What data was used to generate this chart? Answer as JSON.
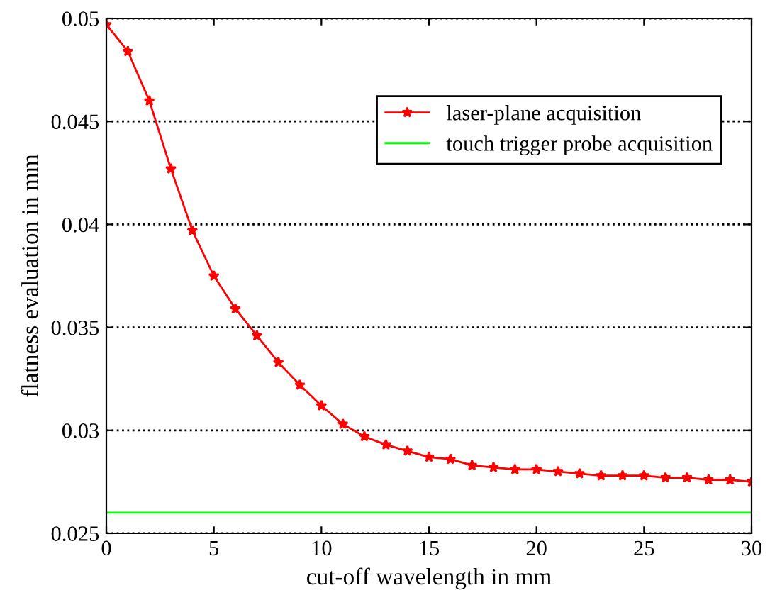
{
  "chart_data": {
    "type": "line",
    "xlabel": "cut-off wavelength in mm",
    "ylabel": "flatness evaluation in mm",
    "xlim": [
      0,
      30
    ],
    "xticks": [
      0,
      5,
      10,
      15,
      20,
      25,
      30
    ],
    "ylim": [
      0.025,
      0.05
    ],
    "yticks": [
      0.025,
      0.03,
      0.035,
      0.04,
      0.045,
      0.05
    ],
    "grid": "y",
    "legend": "top right",
    "series": [
      {
        "name": "laser-plane acquisition",
        "color": "#ff0000",
        "marker": "star",
        "x": [
          0,
          1,
          2,
          3,
          4,
          5,
          6,
          7,
          8,
          9,
          10,
          11,
          12,
          13,
          14,
          15,
          16,
          17,
          18,
          19,
          20,
          21,
          22,
          23,
          24,
          25,
          26,
          27,
          28,
          29,
          30
        ],
        "values": [
          0.0497,
          0.0484,
          0.046,
          0.0427,
          0.0397,
          0.0375,
          0.0359,
          0.0346,
          0.0333,
          0.0322,
          0.0312,
          0.0303,
          0.0297,
          0.0293,
          0.029,
          0.0287,
          0.0286,
          0.0283,
          0.0282,
          0.0281,
          0.0281,
          0.028,
          0.0279,
          0.0278,
          0.0278,
          0.0278,
          0.0277,
          0.0277,
          0.0276,
          0.0276,
          0.0275
        ]
      },
      {
        "name": "touch trigger probe acquisition",
        "color": "#00ff00",
        "x": [
          0,
          30
        ],
        "values": [
          0.026,
          0.026
        ]
      }
    ]
  }
}
